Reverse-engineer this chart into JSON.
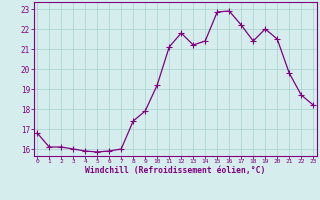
{
  "x": [
    0,
    1,
    2,
    3,
    4,
    5,
    6,
    7,
    8,
    9,
    10,
    11,
    12,
    13,
    14,
    15,
    16,
    17,
    18,
    19,
    20,
    21,
    22,
    23
  ],
  "y": [
    16.8,
    16.1,
    16.1,
    16.0,
    15.9,
    15.85,
    15.9,
    16.0,
    17.4,
    17.9,
    19.2,
    21.1,
    21.8,
    21.2,
    21.4,
    22.85,
    22.9,
    22.2,
    21.4,
    22.0,
    21.5,
    19.8,
    18.7,
    18.2
  ],
  "line_color": "#800080",
  "marker": "+",
  "marker_size": 4,
  "bg_color": "#d5eeed",
  "grid_color": "#aed4d2",
  "xlabel": "Windchill (Refroidissement éolien,°C)",
  "ytick_labels": [
    "16",
    "17",
    "18",
    "19",
    "20",
    "21",
    "22",
    "23"
  ],
  "ytick_vals": [
    16,
    17,
    18,
    19,
    20,
    21,
    22,
    23
  ],
  "xtick_vals": [
    0,
    1,
    2,
    3,
    4,
    5,
    6,
    7,
    8,
    9,
    10,
    11,
    12,
    13,
    14,
    15,
    16,
    17,
    18,
    19,
    20,
    21,
    22,
    23
  ],
  "xlim": [
    -0.3,
    23.3
  ],
  "ylim": [
    15.65,
    23.35
  ],
  "tick_color": "#800080",
  "label_color": "#800080",
  "spine_color": "#800080",
  "line_width": 0.9,
  "marker_linewidth": 0.8
}
